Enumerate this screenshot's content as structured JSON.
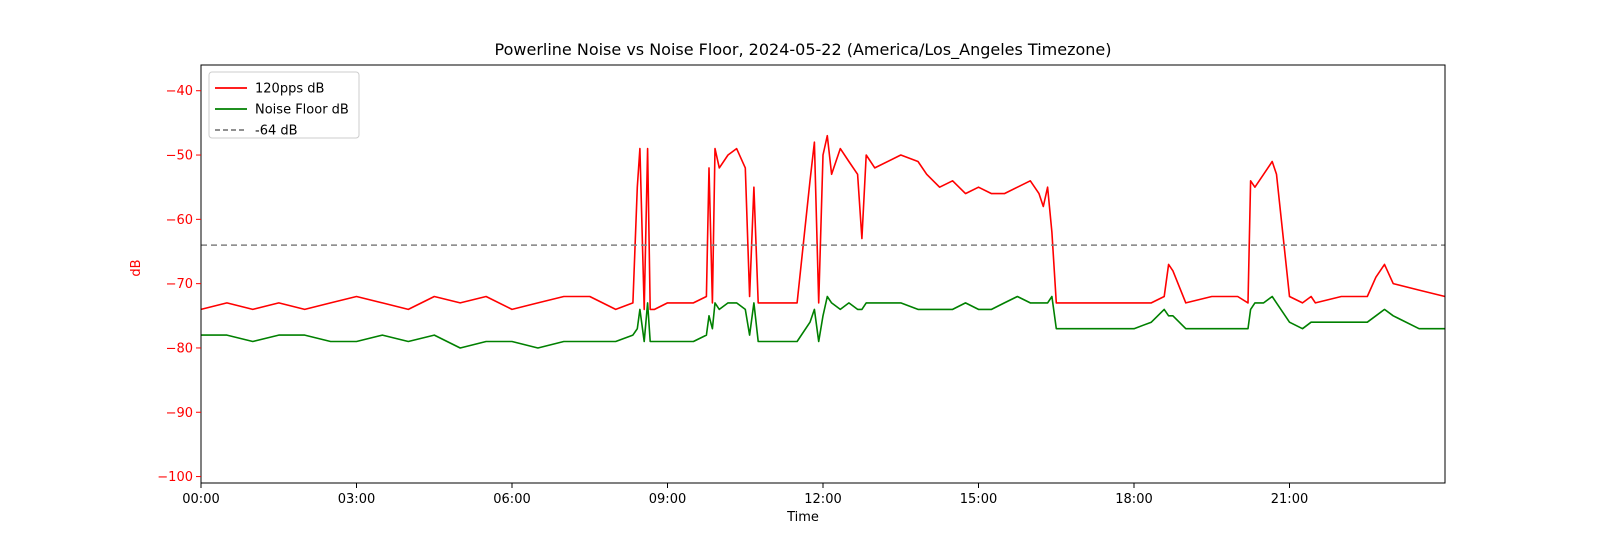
{
  "chart_data": {
    "type": "line",
    "title": "Powerline Noise vs Noise Floor, 2024-05-22 (America/Los_Angeles Timezone)",
    "xlabel": "Time",
    "ylabel": "dB",
    "xlim": [
      "00:00",
      "24:00"
    ],
    "ylim": [
      -101,
      -36
    ],
    "x_ticks": [
      "00:00",
      "03:00",
      "06:00",
      "09:00",
      "12:00",
      "15:00",
      "18:00",
      "21:00"
    ],
    "y_ticks": [
      -40,
      -50,
      -60,
      -70,
      -80,
      -90,
      -100
    ],
    "grid": false,
    "legend_position": "top-left",
    "colors": {
      "pps": "#ff0000",
      "floor": "#008000",
      "threshold": "#808080",
      "ylabel_color": "#ff0000"
    },
    "series": [
      {
        "name": "120pps dB",
        "color": "#ff0000",
        "x": [
          "00:00",
          "00:30",
          "01:00",
          "01:30",
          "02:00",
          "02:30",
          "03:00",
          "03:30",
          "04:00",
          "04:30",
          "05:00",
          "05:30",
          "06:00",
          "06:30",
          "07:00",
          "07:30",
          "08:00",
          "08:20",
          "08:25",
          "08:28",
          "08:33",
          "08:37",
          "08:40",
          "08:45",
          "09:00",
          "09:30",
          "09:45",
          "09:48",
          "09:52",
          "09:55",
          "10:00",
          "10:10",
          "10:20",
          "10:30",
          "10:35",
          "10:40",
          "10:45",
          "10:50",
          "11:00",
          "11:30",
          "11:45",
          "11:50",
          "11:55",
          "12:00",
          "12:05",
          "12:10",
          "12:20",
          "12:30",
          "12:40",
          "12:45",
          "12:50",
          "13:00",
          "13:30",
          "13:50",
          "14:00",
          "14:15",
          "14:30",
          "14:45",
          "15:00",
          "15:15",
          "15:30",
          "15:45",
          "16:00",
          "16:10",
          "16:15",
          "16:20",
          "16:25",
          "16:30",
          "17:00",
          "17:30",
          "18:00",
          "18:20",
          "18:35",
          "18:40",
          "18:45",
          "19:00",
          "19:30",
          "20:00",
          "20:12",
          "20:15",
          "20:20",
          "20:30",
          "20:40",
          "20:45",
          "21:00",
          "21:15",
          "21:25",
          "21:30",
          "22:00",
          "22:30",
          "22:40",
          "22:50",
          "23:00",
          "23:30",
          "24:00"
        ],
        "values": [
          -74,
          -73,
          -74,
          -73,
          -74,
          -73,
          -72,
          -73,
          -74,
          -72,
          -73,
          -72,
          -74,
          -73,
          -72,
          -72,
          -74,
          -73,
          -55,
          -49,
          -74,
          -49,
          -74,
          -74,
          -73,
          -73,
          -72,
          -52,
          -73,
          -49,
          -52,
          -50,
          -49,
          -52,
          -72,
          -55,
          -73,
          -73,
          -73,
          -73,
          -54,
          -48,
          -73,
          -50,
          -47,
          -53,
          -49,
          -51,
          -53,
          -63,
          -50,
          -52,
          -50,
          -51,
          -53,
          -55,
          -54,
          -56,
          -55,
          -56,
          -56,
          -55,
          -54,
          -56,
          -58,
          -55,
          -62,
          -73,
          -73,
          -73,
          -73,
          -73,
          -72,
          -67,
          -68,
          -73,
          -72,
          -72,
          -73,
          -54,
          -55,
          -53,
          -51,
          -53,
          -72,
          -73,
          -72,
          -73,
          -72,
          -72,
          -69,
          -67,
          -70,
          -71,
          -72
        ]
      },
      {
        "name": "Noise Floor dB",
        "color": "#008000",
        "x": [
          "00:00",
          "00:30",
          "01:00",
          "01:30",
          "02:00",
          "02:30",
          "03:00",
          "03:30",
          "04:00",
          "04:30",
          "05:00",
          "05:30",
          "06:00",
          "06:30",
          "07:00",
          "07:30",
          "08:00",
          "08:20",
          "08:25",
          "08:28",
          "08:33",
          "08:37",
          "08:40",
          "08:45",
          "09:00",
          "09:30",
          "09:45",
          "09:48",
          "09:52",
          "09:55",
          "10:00",
          "10:10",
          "10:20",
          "10:30",
          "10:35",
          "10:40",
          "10:45",
          "10:50",
          "11:00",
          "11:30",
          "11:45",
          "11:50",
          "11:55",
          "12:00",
          "12:05",
          "12:10",
          "12:20",
          "12:30",
          "12:40",
          "12:45",
          "12:50",
          "13:00",
          "13:30",
          "13:50",
          "14:00",
          "14:15",
          "14:30",
          "14:45",
          "15:00",
          "15:15",
          "15:30",
          "15:45",
          "16:00",
          "16:10",
          "16:15",
          "16:20",
          "16:25",
          "16:30",
          "17:00",
          "17:30",
          "18:00",
          "18:20",
          "18:35",
          "18:40",
          "18:45",
          "19:00",
          "19:30",
          "20:00",
          "20:12",
          "20:15",
          "20:20",
          "20:30",
          "20:40",
          "20:45",
          "21:00",
          "21:15",
          "21:25",
          "21:30",
          "22:00",
          "22:30",
          "22:40",
          "22:50",
          "23:00",
          "23:30",
          "24:00"
        ],
        "values": [
          -78,
          -78,
          -79,
          -78,
          -78,
          -79,
          -79,
          -78,
          -79,
          -78,
          -80,
          -79,
          -79,
          -80,
          -79,
          -79,
          -79,
          -78,
          -77,
          -74,
          -79,
          -73,
          -79,
          -79,
          -79,
          -79,
          -78,
          -75,
          -77,
          -73,
          -74,
          -73,
          -73,
          -74,
          -78,
          -73,
          -79,
          -79,
          -79,
          -79,
          -76,
          -74,
          -79,
          -75,
          -72,
          -73,
          -74,
          -73,
          -74,
          -74,
          -73,
          -73,
          -73,
          -74,
          -74,
          -74,
          -74,
          -73,
          -74,
          -74,
          -73,
          -72,
          -73,
          -73,
          -73,
          -73,
          -72,
          -77,
          -77,
          -77,
          -77,
          -76,
          -74,
          -75,
          -75,
          -77,
          -77,
          -77,
          -77,
          -74,
          -73,
          -73,
          -72,
          -73,
          -76,
          -77,
          -76,
          -76,
          -76,
          -76,
          -75,
          -74,
          -75,
          -77,
          -77
        ]
      },
      {
        "name": "-64 dB",
        "color": "#808080",
        "dashed": true,
        "x": [
          "00:00",
          "24:00"
        ],
        "values": [
          -64,
          -64
        ]
      }
    ]
  }
}
